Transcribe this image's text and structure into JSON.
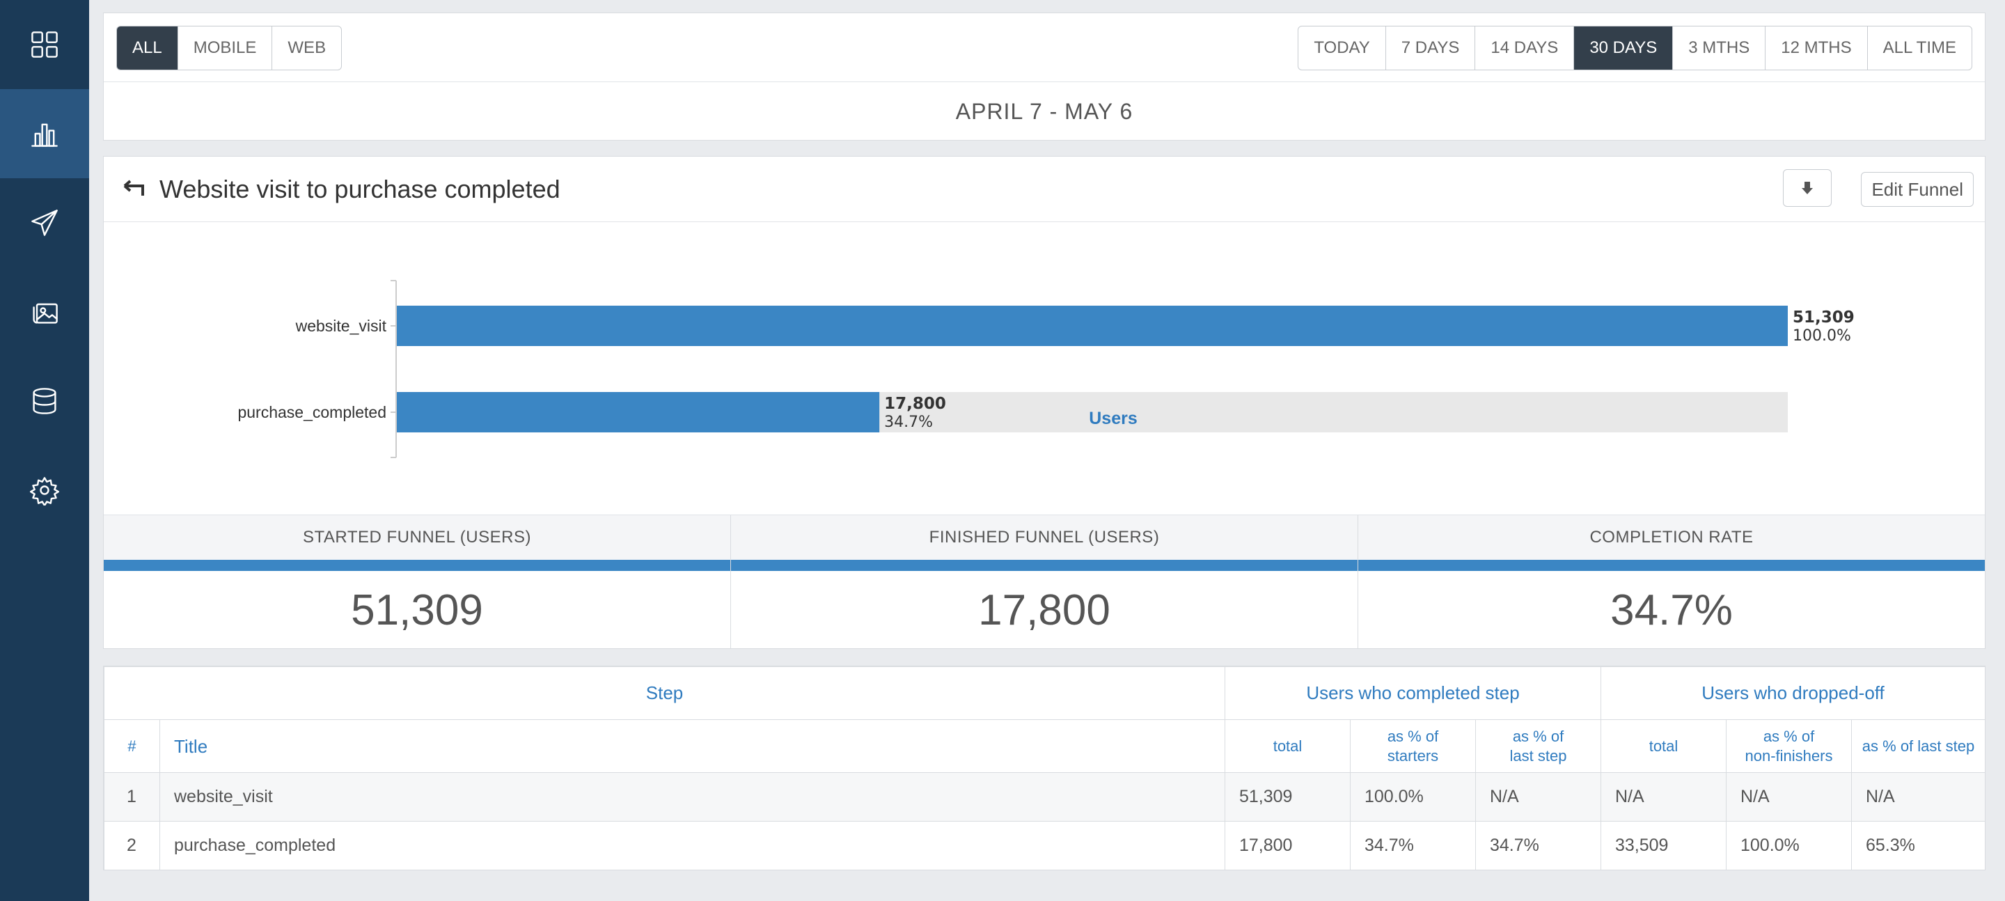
{
  "sidebar": {
    "items": [
      {
        "icon": "grid-icon",
        "active": false
      },
      {
        "icon": "bar-chart-icon",
        "active": true
      },
      {
        "icon": "paper-plane-icon",
        "active": false
      },
      {
        "icon": "images-icon",
        "active": false
      },
      {
        "icon": "database-icon",
        "active": false
      },
      {
        "icon": "gear-icon",
        "active": false
      }
    ]
  },
  "filters": {
    "platform": [
      "ALL",
      "MOBILE",
      "WEB"
    ],
    "platform_selected": "ALL",
    "ranges": [
      "TODAY",
      "7 DAYS",
      "14 DAYS",
      "30 DAYS",
      "3 MTHS",
      "12 MTHS",
      "ALL TIME"
    ],
    "range_selected": "30 DAYS",
    "date_range": "APRIL 7 - MAY 6"
  },
  "funnel": {
    "title": "Website visit to purchase completed",
    "edit_label": "Edit Funnel"
  },
  "chart_data": {
    "type": "bar",
    "orientation": "horizontal",
    "categories": [
      "website_visit",
      "purchase_completed"
    ],
    "values": [
      51309,
      17800
    ],
    "value_labels": [
      "51,309",
      "17,800"
    ],
    "percent_labels": [
      "100.0%",
      "34.7%"
    ],
    "xlabel": "Users",
    "colors": {
      "bar": "#3b86c4",
      "track": "#e8e8e8",
      "axis_label": "#2f7bbf"
    }
  },
  "stats": [
    {
      "label": "STARTED FUNNEL (USERS)",
      "value": "51,309"
    },
    {
      "label": "FINISHED FUNNEL (USERS)",
      "value": "17,800"
    },
    {
      "label": "COMPLETION RATE",
      "value": "34.7%"
    }
  ],
  "table": {
    "groups": {
      "step": "Step",
      "completed": "Users who completed step",
      "dropped": "Users who dropped-off"
    },
    "columns": {
      "num": "#",
      "title": "Title",
      "c_total": "total",
      "c_starters_1": "as % of",
      "c_starters_2": "starters",
      "c_last_1": "as % of",
      "c_last_2": "last step",
      "d_total": "total",
      "d_nonfin_1": "as % of",
      "d_nonfin_2": "non-finishers",
      "d_last": "as % of last step"
    },
    "rows": [
      {
        "num": "1",
        "title": "website_visit",
        "c_total": "51,309",
        "c_starters": "100.0%",
        "c_last": "N/A",
        "d_total": "N/A",
        "d_nonfin": "N/A",
        "d_last": "N/A"
      },
      {
        "num": "2",
        "title": "purchase_completed",
        "c_total": "17,800",
        "c_starters": "34.7%",
        "c_last": "34.7%",
        "d_total": "33,509",
        "d_nonfin": "100.0%",
        "d_last": "65.3%"
      }
    ]
  }
}
